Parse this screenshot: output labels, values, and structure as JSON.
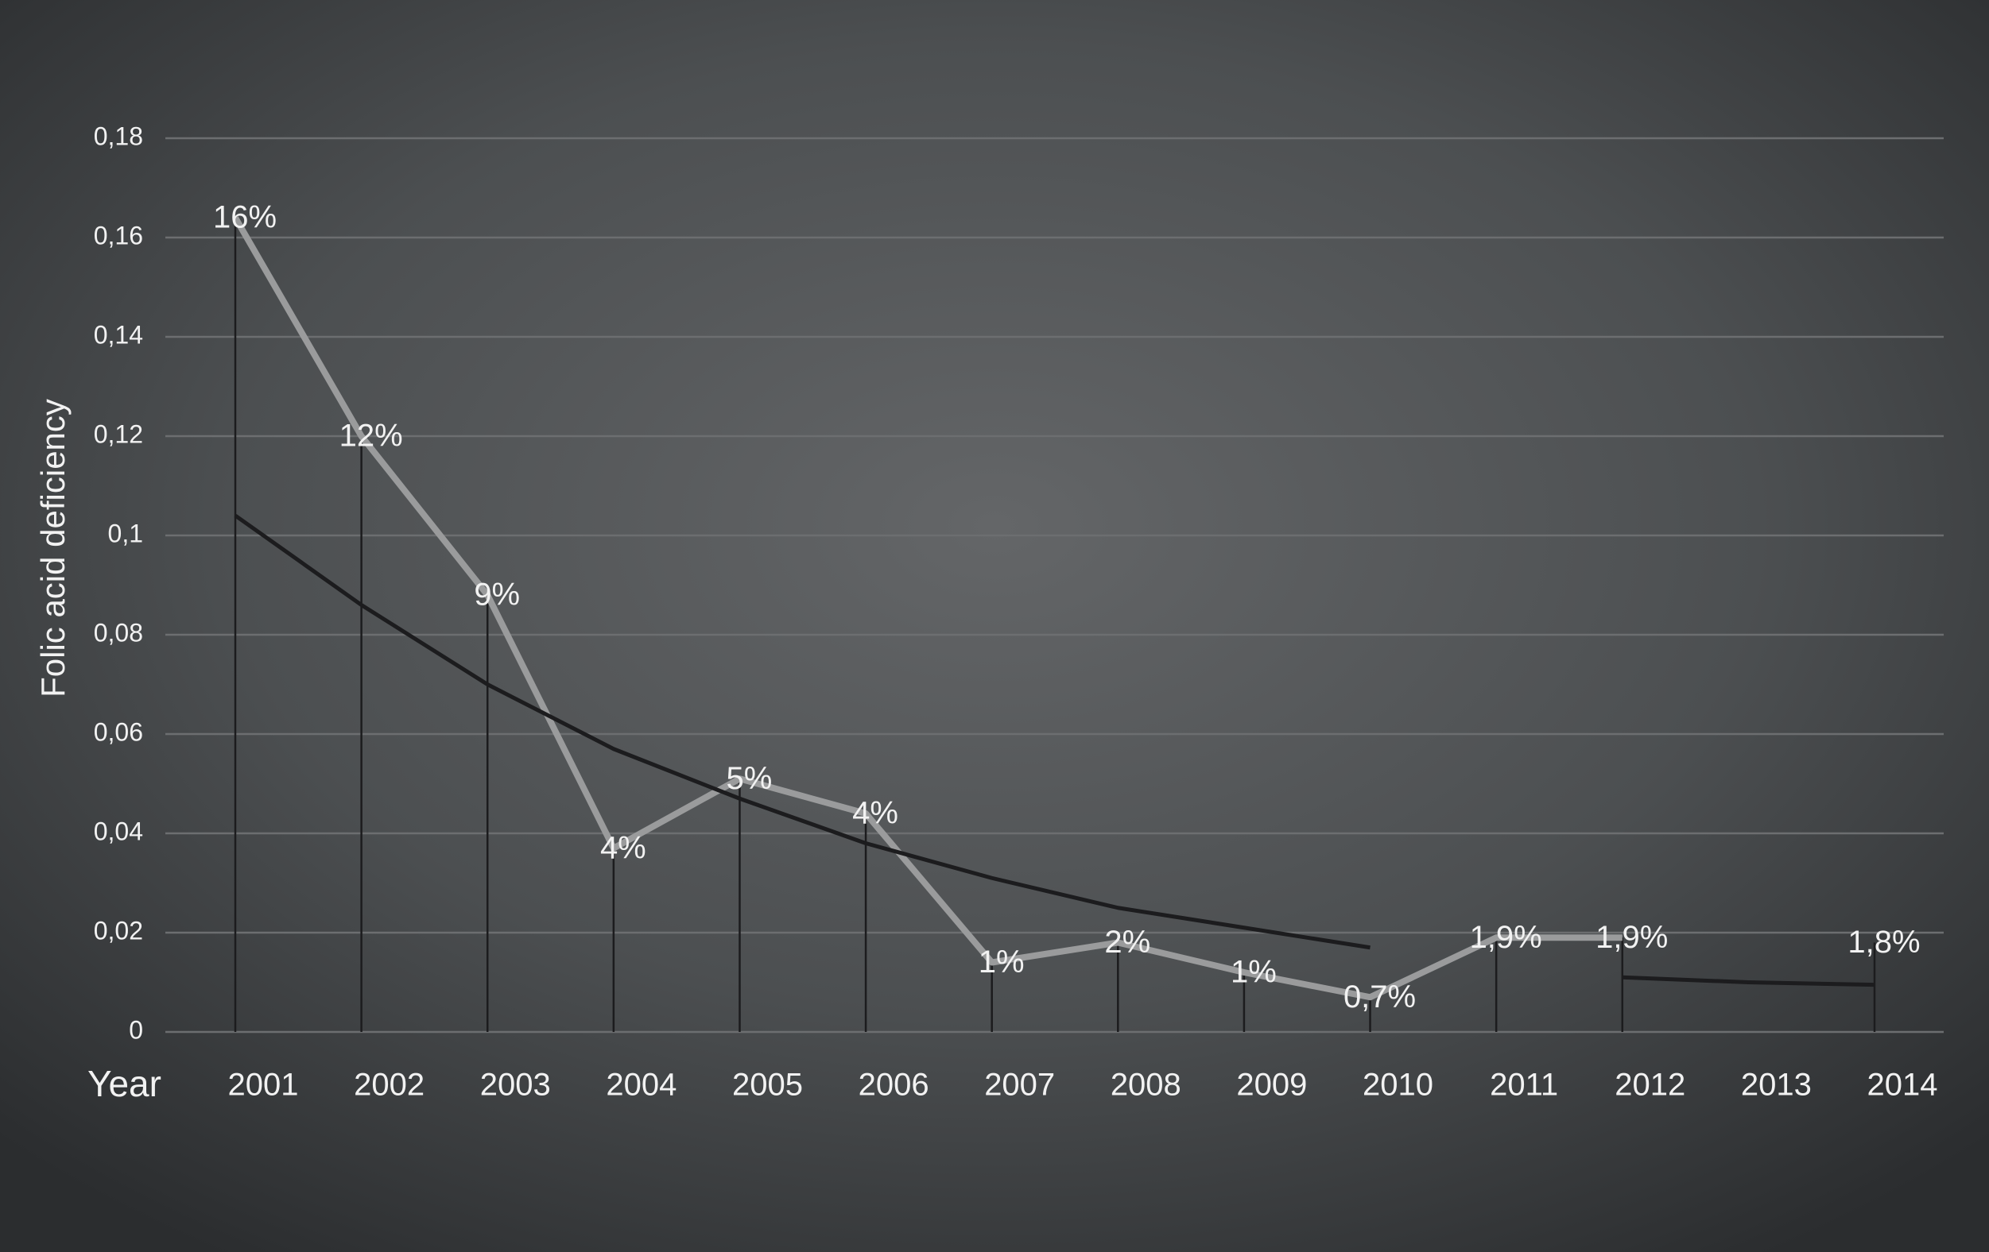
{
  "chart_data": {
    "type": "line",
    "y_label": "Folic acid deficiency",
    "x_label": "Year",
    "categories": [
      "2001",
      "2002",
      "2003",
      "2004",
      "2005",
      "2006",
      "2007",
      "2008",
      "2009",
      "2010",
      "2011",
      "2012",
      "2013",
      "2014"
    ],
    "series": [
      {
        "color": "#9a9b9c",
        "values": [
          0.164,
          0.12,
          0.088,
          0.037,
          0.051,
          0.044,
          0.014,
          0.018,
          0.012,
          0.007,
          0.019,
          0.019,
          null,
          0.018
        ],
        "value_labels": [
          "16%",
          "12%",
          "9%",
          "4%",
          "5%",
          "4%",
          "1%",
          "2%",
          "1%",
          "0,7%",
          "1,9%",
          "1,9%",
          null,
          "1,8%"
        ],
        "drop_lines": true
      },
      {
        "color": "#1c1c1e",
        "values": [
          0.104,
          0.086,
          0.07,
          0.057,
          0.047,
          0.038,
          0.031,
          0.025,
          0.021,
          0.017,
          null,
          0.011,
          0.01,
          0.0095
        ]
      }
    ],
    "ylim": [
      0,
      0.18
    ],
    "yticks": [
      0,
      {
        "value": 0.02,
        "label": "0,02"
      },
      {
        "value": 0.04,
        "label": "0,04"
      },
      {
        "value": 0.06,
        "label": "0,06"
      },
      {
        "value": 0.08,
        "label": "0,08"
      },
      {
        "value": 0.1,
        "label": "0,1"
      },
      {
        "value": 0.12,
        "label": "0,12"
      },
      {
        "value": 0.14,
        "label": "0,14"
      },
      {
        "value": 0.16,
        "label": "0,16"
      },
      {
        "value": 0.18,
        "label": "0,18"
      }
    ],
    "grid": true
  }
}
